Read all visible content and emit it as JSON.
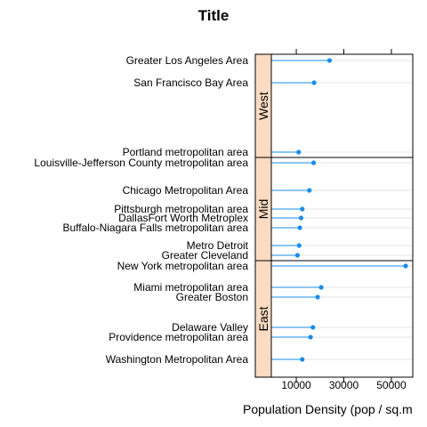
{
  "chart_data": {
    "type": "dot-lollipop",
    "title": "Title",
    "xlabel": "Population Density (pop / sq.m",
    "ylabel": "",
    "xlim": [
      -500,
      59000
    ],
    "xticks": [
      10000,
      30000,
      50000
    ],
    "xtick_labels": [
      "10000",
      "30000",
      "50000"
    ],
    "colors": {
      "point": "#1a8de8",
      "strip": "#fbdcc2",
      "grid": "#e6e6e6"
    },
    "panels": [
      {
        "name": "West",
        "items": [
          {
            "label": "Greater Los Angeles Area",
            "value": 24000
          },
          {
            "label": "San Francisco Bay Area",
            "value": 17500
          },
          {
            "label": "Portland metropolitan area",
            "value": 11000
          }
        ]
      },
      {
        "name": "Mid",
        "items": [
          {
            "label": "Louisville-Jefferson County metropolitan area",
            "value": 17300
          },
          {
            "label": "Chicago Metropolitan Area",
            "value": 15500
          },
          {
            "label": "Pittsburgh metropolitan area",
            "value": 12500
          },
          {
            "label": "DallasFort Worth Metroplex",
            "value": 12000
          },
          {
            "label": "Buffalo-Niagara Falls metropolitan area",
            "value": 11500
          },
          {
            "label": "Metro Detroit",
            "value": 11200
          },
          {
            "label": "Greater Cleveland",
            "value": 10500
          }
        ]
      },
      {
        "name": "East",
        "items": [
          {
            "label": "New York metropolitan area",
            "value": 56000
          },
          {
            "label": "Miami metropolitan area",
            "value": 20500
          },
          {
            "label": "Greater Boston",
            "value": 19000
          },
          {
            "label": "Delaware Valley",
            "value": 17000
          },
          {
            "label": "Providence metropolitan area",
            "value": 16000
          },
          {
            "label": "Washington Metropolitan Area",
            "value": 12500
          }
        ]
      }
    ]
  }
}
